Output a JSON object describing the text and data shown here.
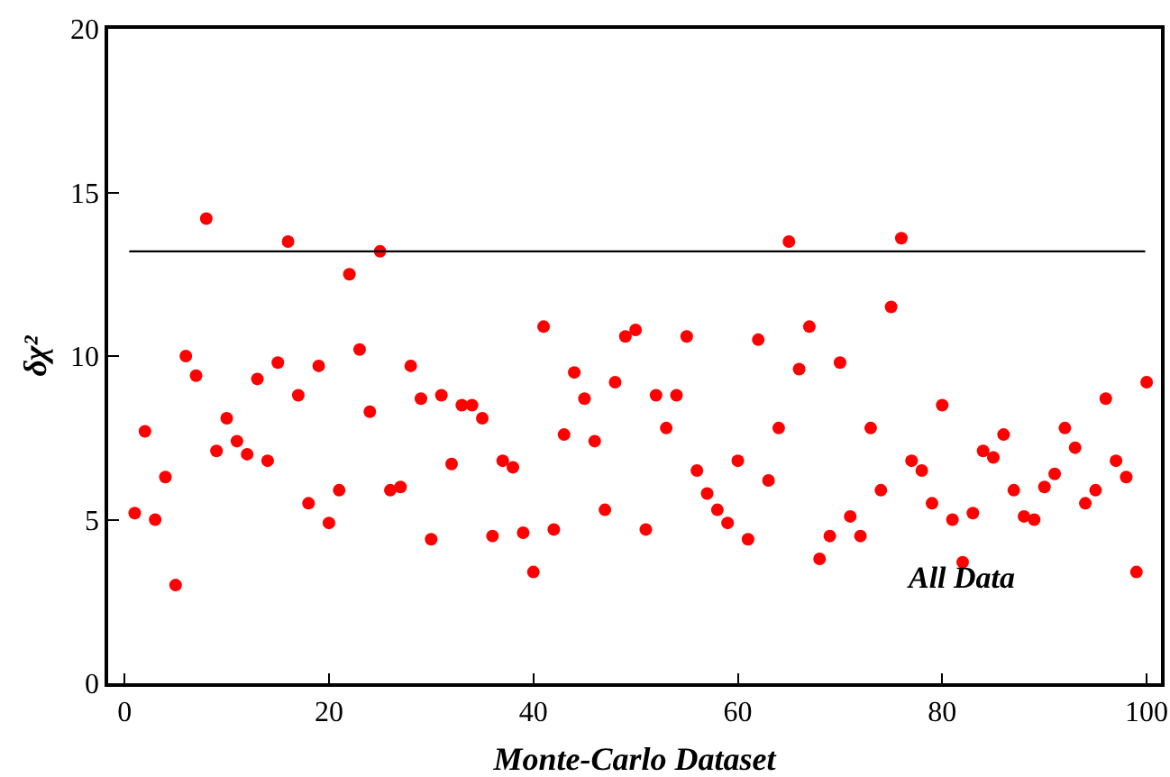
{
  "chart_data": {
    "type": "scatter",
    "xlabel": "Monte-Carlo Dataset",
    "ylabel": "δχ²",
    "x": [
      1,
      2,
      3,
      4,
      5,
      6,
      7,
      8,
      9,
      10,
      11,
      12,
      13,
      14,
      15,
      16,
      17,
      18,
      19,
      20,
      21,
      22,
      23,
      24,
      25,
      26,
      27,
      28,
      29,
      30,
      31,
      32,
      33,
      34,
      35,
      36,
      37,
      38,
      39,
      40,
      41,
      42,
      43,
      44,
      45,
      46,
      47,
      48,
      49,
      50,
      51,
      52,
      53,
      54,
      55,
      56,
      57,
      58,
      59,
      60,
      61,
      62,
      63,
      64,
      65,
      66,
      67,
      68,
      69,
      70,
      71,
      72,
      73,
      74,
      75,
      76,
      77,
      78,
      79,
      80,
      81,
      82,
      83,
      84,
      85,
      86,
      87,
      88,
      89,
      90,
      91,
      92,
      93,
      94,
      95,
      96,
      97,
      98,
      99,
      100
    ],
    "series": [
      {
        "color": "#ff0000",
        "values": [
          5.2,
          7.7,
          5.0,
          6.3,
          3.0,
          10.0,
          9.4,
          14.2,
          7.1,
          8.1,
          7.4,
          7.0,
          9.3,
          6.8,
          9.8,
          13.5,
          8.8,
          5.5,
          9.7,
          4.9,
          5.9,
          12.5,
          10.2,
          8.3,
          13.2,
          5.9,
          6.0,
          9.7,
          8.7,
          4.4,
          8.8,
          6.7,
          8.5,
          8.5,
          8.1,
          4.5,
          6.8,
          6.6,
          4.6,
          3.4,
          10.9,
          4.7,
          7.6,
          9.5,
          8.7,
          7.4,
          5.3,
          9.2,
          10.6,
          10.8,
          4.7,
          8.8,
          7.8,
          8.8,
          10.6,
          6.5,
          5.8,
          5.3,
          4.9,
          6.8,
          4.4,
          10.5,
          6.2,
          7.8,
          13.5,
          9.6,
          10.9,
          3.8,
          4.5,
          9.8,
          5.1,
          4.5,
          7.8,
          5.9,
          11.5,
          13.6,
          6.8,
          6.5,
          5.5,
          8.5,
          5.0,
          3.7,
          5.2,
          7.1,
          6.9,
          7.6,
          5.9,
          5.1,
          5.0,
          6.0,
          6.4,
          7.8,
          7.2,
          5.5,
          5.9,
          8.7,
          6.8,
          6.3,
          3.4,
          9.2
        ]
      }
    ],
    "xlim": [
      -1.6,
      101.4
    ],
    "ylim": [
      0,
      20
    ],
    "xticks": [
      0,
      20,
      40,
      60,
      80,
      100
    ],
    "yticks": [
      0,
      5,
      10,
      15,
      20
    ],
    "ref_lines": [
      {
        "axis": "y",
        "value": 13.2,
        "color": "#000000"
      }
    ],
    "annotations": [
      "All Data"
    ],
    "marker": "circle",
    "grid": false
  }
}
